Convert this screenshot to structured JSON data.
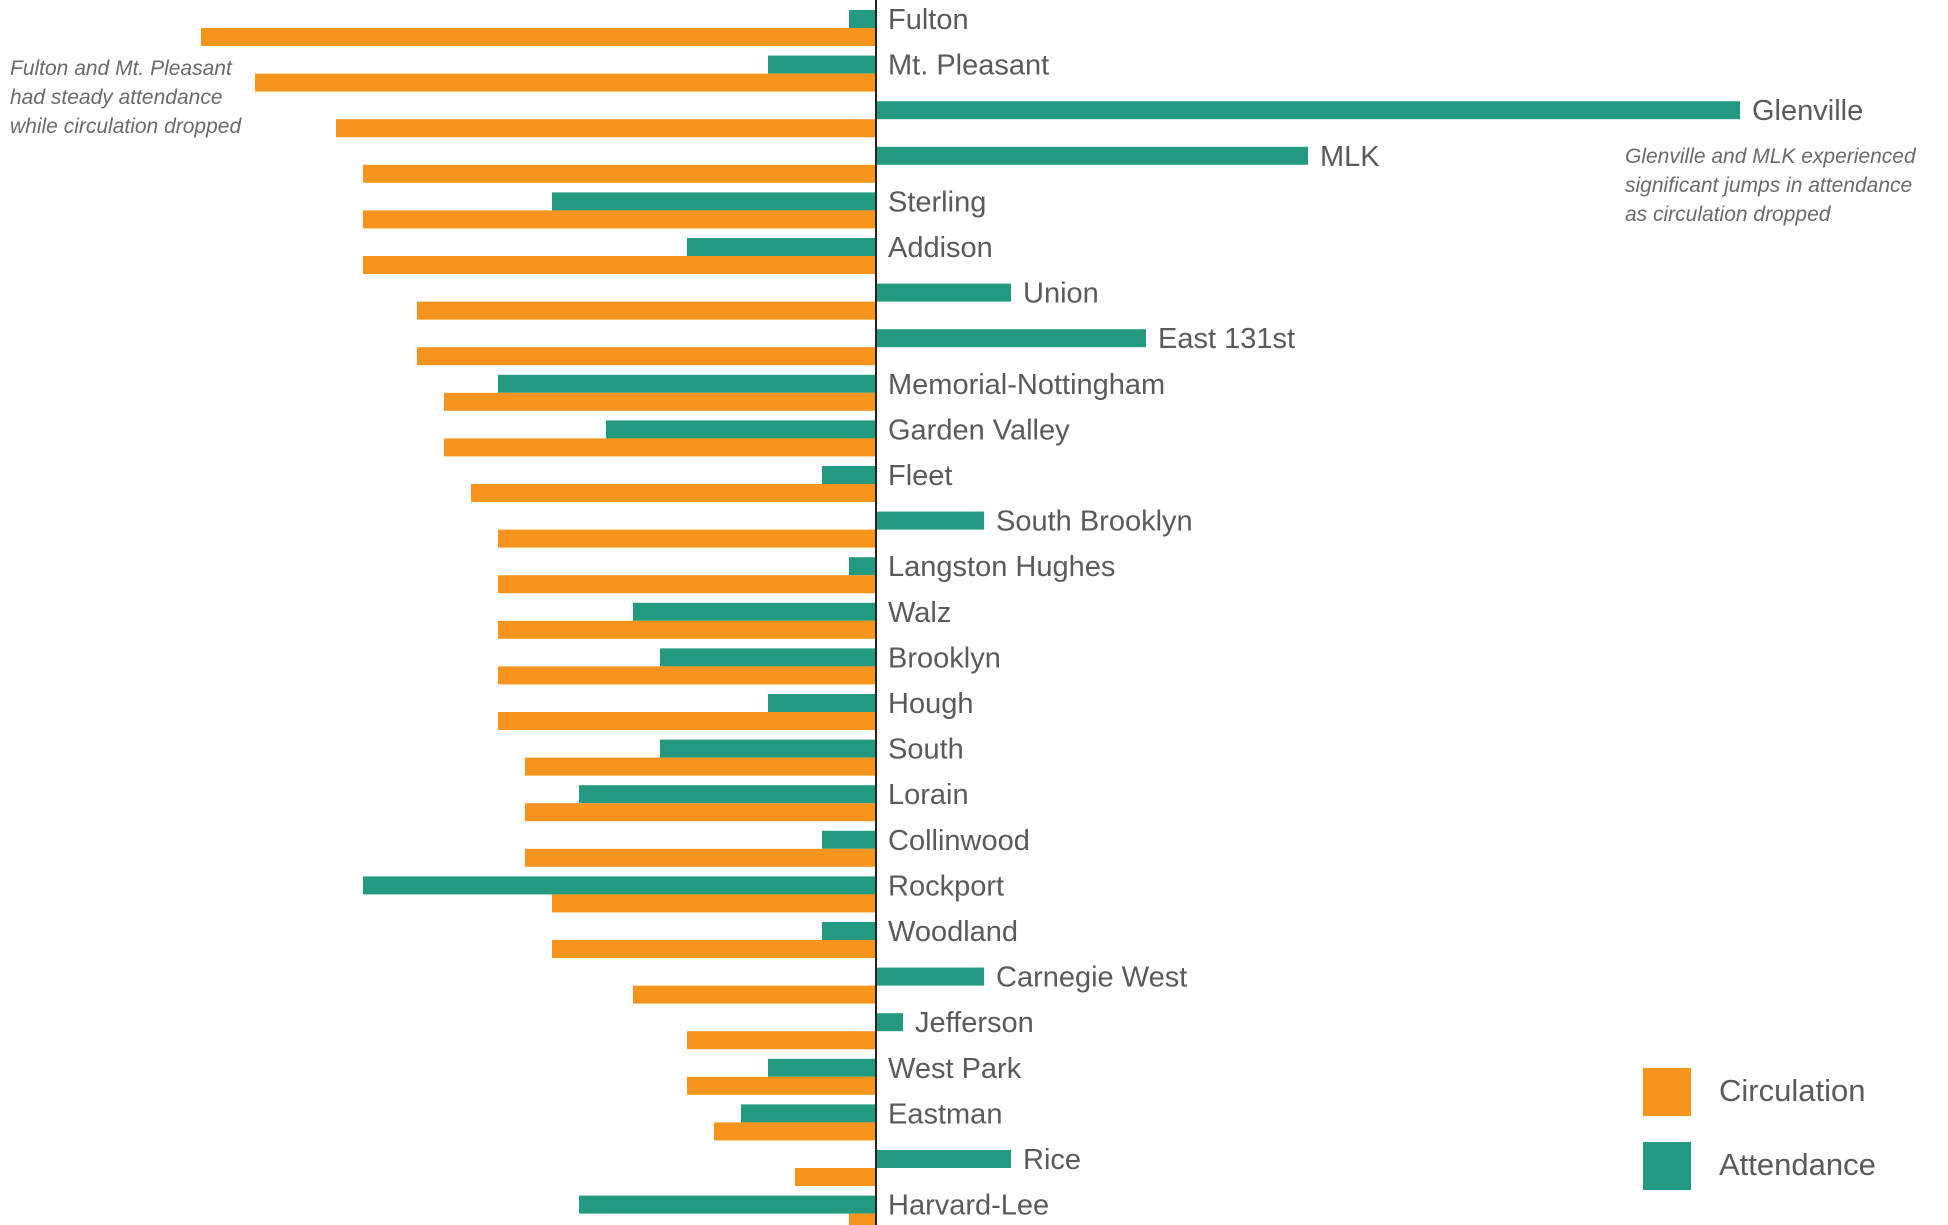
{
  "chart_data": {
    "type": "bar",
    "orientation": "horizontal-diverging",
    "title": "",
    "xlabel": "",
    "ylabel": "",
    "grid": false,
    "legend_position": "bottom-right",
    "colors": {
      "Circulation": "#f7941d",
      "Attendance": "#239a7f",
      "axis": "#222222"
    },
    "series": [
      {
        "name": "Circulation",
        "values": [
          -50,
          -46,
          -40,
          -38,
          -38,
          -38,
          -34,
          -34,
          -32,
          -32,
          -30,
          -28,
          -28,
          -28,
          -28,
          -28,
          -26,
          -26,
          -26,
          -24,
          -24,
          -18,
          -14,
          -14,
          -12,
          -6,
          -2
        ]
      },
      {
        "name": "Attendance",
        "values": [
          -2,
          -8,
          64,
          32,
          -24,
          -14,
          10,
          20,
          -28,
          -20,
          -4,
          8,
          -2,
          -18,
          -16,
          -8,
          -16,
          -22,
          -4,
          -38,
          -4,
          8,
          2,
          -8,
          -10,
          10,
          -22
        ]
      }
    ],
    "categories": [
      "Fulton",
      "Mt. Pleasant",
      "Glenville",
      "MLK",
      "Sterling",
      "Addison",
      "Union",
      "East 131st",
      "Memorial-Nottingham",
      "Garden Valley",
      "Fleet",
      "South Brooklyn",
      "Langston Hughes",
      "Walz",
      "Brooklyn",
      "Hough",
      "South",
      "Lorain",
      "Collinwood",
      "Rockport",
      "Woodland",
      "Carnegie West",
      "Jefferson",
      "West Park",
      "Eastman",
      "Rice",
      "Harvard-Lee"
    ],
    "annotations": [
      {
        "id": "left",
        "text": "Fulton and Mt. Pleasant\nhad steady attendance\nwhile circulation dropped"
      },
      {
        "id": "right",
        "text": "Glenville and MLK experienced\nsignificant jumps in attendance\nas circulation dropped"
      }
    ]
  },
  "legend": {
    "items": [
      {
        "label": "Circulation",
        "color": "#f7941d"
      },
      {
        "label": "Attendance",
        "color": "#239a7f"
      }
    ]
  }
}
